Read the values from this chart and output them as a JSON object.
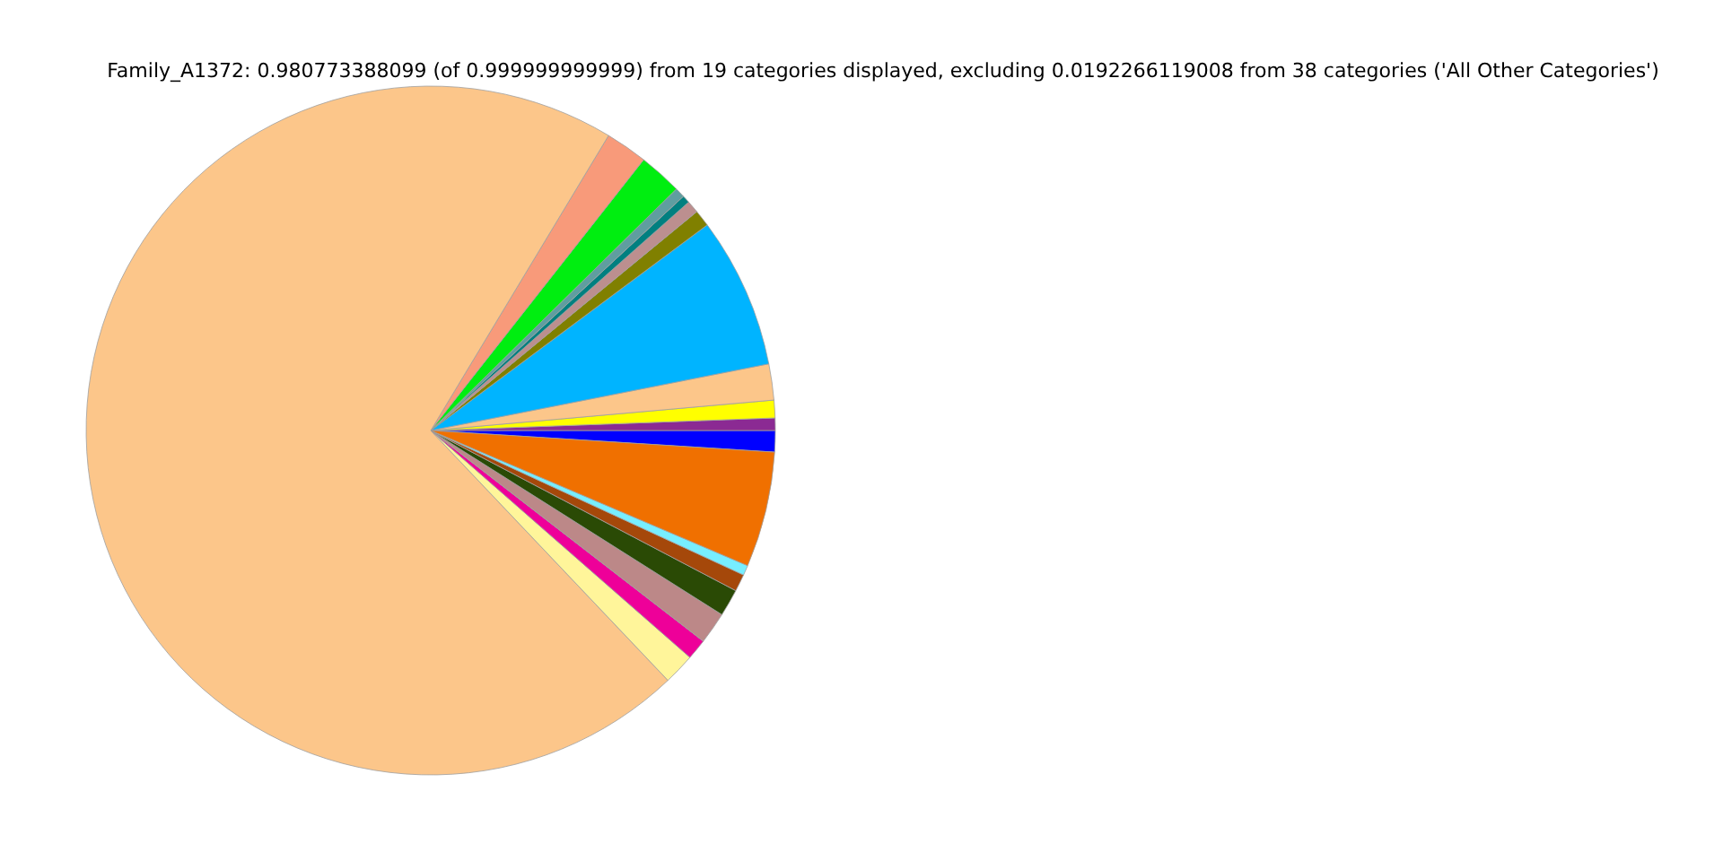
{
  "chart_data": {
    "type": "pie",
    "title": "Family_A1372: 0.980773388099 (of 0.999999999999) from 19 categories displayed, excluding 0.0192266119008 from 38 categories ('All Other Categories')",
    "categories": [
      null,
      null,
      null,
      null,
      null,
      null,
      null,
      null,
      null,
      null,
      null,
      null,
      null,
      null,
      null,
      null,
      null,
      null,
      null
    ],
    "values": [
      1.0,
      0.58,
      0.83,
      1.69,
      7.08,
      0.78,
      0.58,
      0.36,
      0.47,
      2.03,
      1.97,
      70.71,
      1.47,
      0.97,
      1.5,
      1.28,
      0.81,
      0.47,
      5.42
    ],
    "colors": [
      "#0000ff",
      "#8b2a93",
      "#ffff00",
      "#fcc68a",
      "#00b4ff",
      "#808000",
      "#bc8f8f",
      "#008080",
      "#5f9ea0",
      "#00ee10",
      "#f89a7a",
      "#fcc68a",
      "#fff59a",
      "#ee0099",
      "#bc8888",
      "#2a4a05",
      "#a5480a",
      "#77eeff",
      "#f07000"
    ],
    "legend": false
  }
}
